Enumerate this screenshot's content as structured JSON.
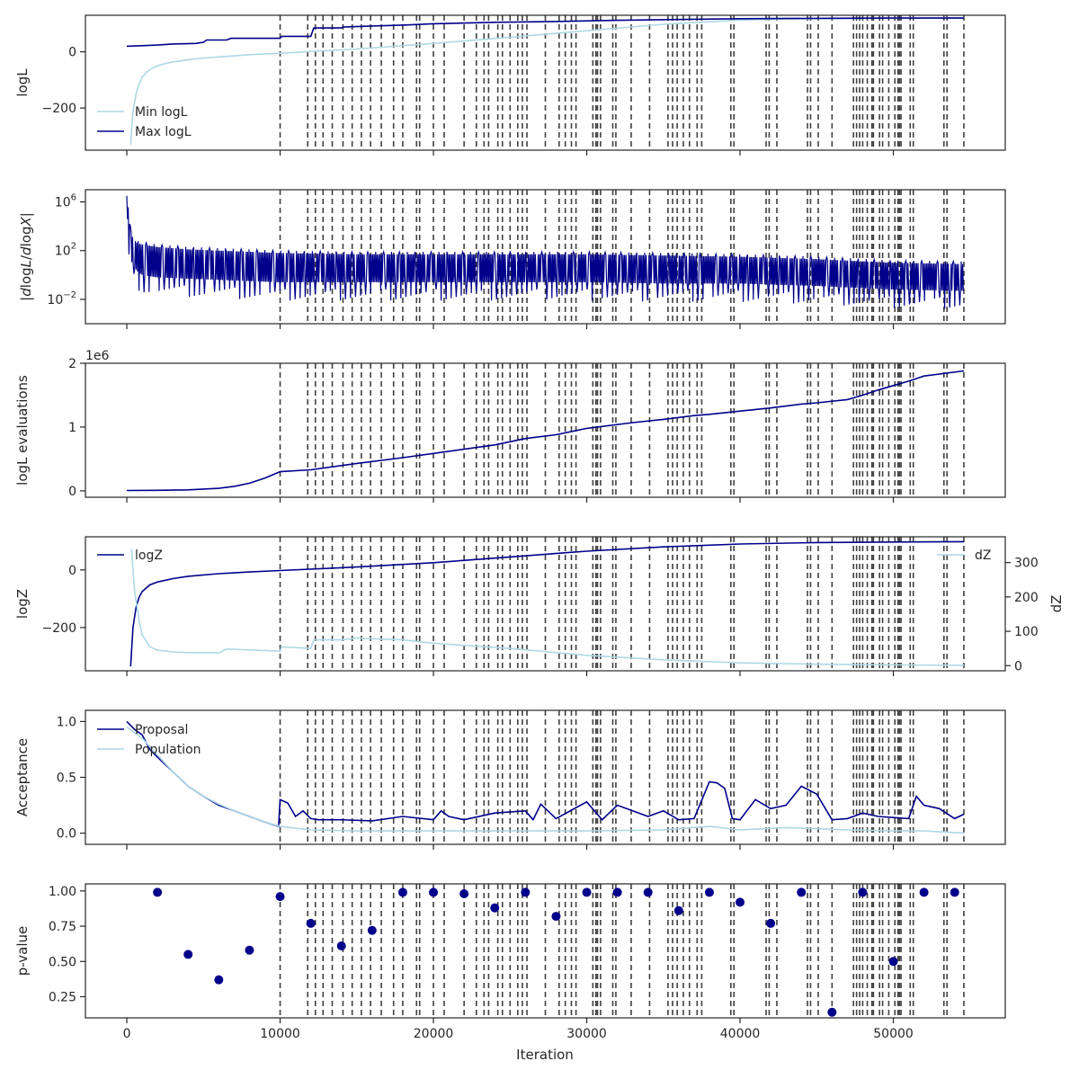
{
  "colors": {
    "dark": "#00008b",
    "light": "#add8e6",
    "vline": "#404040",
    "axis": "#262626"
  },
  "xlabel": "Iteration",
  "xticks": [
    0,
    10000,
    20000,
    30000,
    40000,
    50000
  ],
  "xlim": [
    -2700,
    57300
  ],
  "vlines": [
    10000,
    11800,
    12300,
    12800,
    13400,
    14100,
    14700,
    15300,
    15900,
    16600,
    17400,
    18000,
    18900,
    19100,
    20000,
    20700,
    22000,
    22800,
    23300,
    23600,
    24200,
    24500,
    25000,
    25500,
    25800,
    26100,
    27300,
    28200,
    28600,
    29000,
    29300,
    30400,
    30600,
    30700,
    30900,
    31700,
    31900,
    32900,
    34100,
    35300,
    35600,
    35900,
    36300,
    36700,
    37200,
    37500,
    39400,
    39600,
    41700,
    41900,
    42400,
    44400,
    44600,
    45100,
    46000,
    47400,
    47600,
    47800,
    48000,
    48300,
    48600,
    48700,
    49100,
    49300,
    49700,
    50100,
    50300,
    50400,
    50500,
    51100,
    51300,
    53300,
    53500,
    54600
  ],
  "chart_data": [
    {
      "type": "line",
      "ylabel": "logL",
      "ylim": [
        -350,
        130
      ],
      "yticks": [
        -200,
        0
      ],
      "ytick_labels": [
        "−200",
        "0"
      ],
      "legend": "lower-left",
      "series": [
        {
          "name": "Min logL",
          "x": [
            250,
            400,
            600,
            800,
            1000,
            1300,
            1600,
            2000,
            2500,
            3000,
            4000,
            5000,
            6000,
            8000,
            10000,
            15000,
            20000,
            25000,
            30000,
            35000,
            40000,
            45000,
            50000,
            54600
          ],
          "y": [
            -330,
            -210,
            -150,
            -115,
            -90,
            -72,
            -60,
            -50,
            -42,
            -36,
            -28,
            -22,
            -18,
            -10,
            -5,
            10,
            30,
            52,
            75,
            98,
            113,
            118,
            120,
            121
          ]
        },
        {
          "name": "Max logL",
          "x": [
            0,
            1000,
            2000,
            3000,
            4500,
            5000,
            5200,
            6500,
            6800,
            10000,
            10100,
            12000,
            12200,
            14000,
            14100,
            16000,
            18000,
            20000,
            24000,
            28000,
            32000,
            36000,
            40000,
            45000,
            50000,
            54600
          ],
          "y": [
            20,
            22,
            24,
            28,
            30,
            34,
            42,
            42,
            48,
            48,
            55,
            55,
            85,
            85,
            88,
            92,
            95,
            100,
            105,
            108,
            112,
            115,
            118,
            119,
            120,
            120
          ]
        }
      ]
    },
    {
      "type": "line",
      "ylabel": "|dlogL/dlogX|",
      "yscale": "log",
      "ylim_log10": [
        -4.0,
        7.0
      ],
      "yticks_log10": [
        -2,
        2,
        6
      ],
      "series": [
        {
          "name": "",
          "x": [
            0,
            100,
            200,
            400,
            700,
            1000,
            2000,
            4000,
            6000,
            8000,
            10000,
            15000,
            20000,
            25000,
            30000,
            35000,
            40000,
            45000,
            50000,
            54600
          ],
          "y_upper_log10": [
            6.5,
            5.5,
            4.0,
            3.0,
            2.6,
            2.5,
            2.3,
            2.1,
            2.0,
            1.9,
            1.8,
            1.7,
            1.7,
            1.7,
            1.7,
            1.6,
            1.5,
            1.3,
            1.0,
            0.9
          ],
          "y_lower_log10": [
            6.0,
            3.0,
            1.5,
            0.8,
            0.3,
            0.0,
            -0.2,
            -0.3,
            -0.4,
            -0.5,
            -0.6,
            -0.6,
            -0.6,
            -0.6,
            -0.6,
            -0.7,
            -0.7,
            -0.9,
            -1.2,
            -1.3
          ]
        }
      ]
    },
    {
      "type": "line",
      "ylabel": "logL evaluations",
      "offset_text": "1e6",
      "ylim": [
        -0.1,
        2.0
      ],
      "yticks": [
        0,
        1,
        2
      ],
      "ytick_labels": [
        "0",
        "1",
        "2"
      ],
      "series": [
        {
          "name": "",
          "x": [
            0,
            2000,
            4000,
            6000,
            7000,
            8000,
            9000,
            10000,
            12000,
            15000,
            18000,
            21000,
            24000,
            26000,
            28000,
            30000,
            33000,
            35000,
            37000,
            38000,
            40000,
            42000,
            44000,
            45000,
            47000,
            48000,
            49000,
            50000,
            51000,
            52000,
            54600
          ],
          "y": [
            0.005,
            0.008,
            0.015,
            0.04,
            0.07,
            0.12,
            0.2,
            0.3,
            0.33,
            0.43,
            0.52,
            0.62,
            0.72,
            0.82,
            0.88,
            0.98,
            1.07,
            1.12,
            1.18,
            1.2,
            1.25,
            1.3,
            1.36,
            1.38,
            1.43,
            1.5,
            1.58,
            1.65,
            1.72,
            1.8,
            1.88
          ]
        }
      ]
    },
    {
      "type": "line",
      "ylabel": "logZ",
      "ylim": [
        -350,
        115
      ],
      "yticks": [
        -200,
        0
      ],
      "ytick_labels": [
        "−200",
        "0"
      ],
      "y2label": "dZ",
      "y2lim": [
        -15,
        375
      ],
      "y2ticks": [
        0,
        100,
        200,
        300
      ],
      "y2tick_labels": [
        "0",
        "100",
        "200",
        "300"
      ],
      "legend": "upper-left",
      "legend2": "upper-right",
      "series": [
        {
          "name": "logZ",
          "axis": "left",
          "x": [
            250,
            400,
            600,
            800,
            1000,
            1500,
            2000,
            3000,
            4000,
            6000,
            8000,
            10000,
            15000,
            20000,
            25000,
            30000,
            35000,
            40000,
            45000,
            50000,
            54600
          ],
          "y": [
            -335,
            -200,
            -130,
            -95,
            -75,
            -52,
            -42,
            -30,
            -22,
            -13,
            -7,
            -2,
            10,
            25,
            45,
            65,
            80,
            90,
            95,
            97,
            98
          ]
        },
        {
          "name": "dZ",
          "axis": "right",
          "x": [
            300,
            500,
            800,
            1000,
            1500,
            2000,
            3000,
            4000,
            5000,
            6000,
            6500,
            10000,
            10100,
            12000,
            12200,
            14000,
            15000,
            18000,
            20000,
            25000,
            30000,
            35000,
            40000,
            45000,
            50000,
            54600
          ],
          "y": [
            340,
            220,
            130,
            90,
            55,
            45,
            40,
            38,
            38,
            37,
            48,
            42,
            55,
            50,
            75,
            75,
            80,
            75,
            65,
            50,
            30,
            17,
            8,
            4,
            2,
            1
          ]
        }
      ]
    },
    {
      "type": "line",
      "ylabel": "Acceptance",
      "ylim": [
        -0.1,
        1.1
      ],
      "yticks": [
        0.0,
        0.5,
        1.0
      ],
      "ytick_labels": [
        "0.0",
        "0.5",
        "1.0"
      ],
      "legend": "upper-left",
      "series": [
        {
          "name": "Proposal",
          "x": [
            0,
            500,
            1000,
            1500,
            2000,
            3000,
            4000,
            5000,
            6000,
            7000,
            8000,
            9000,
            9900,
            10000,
            10500,
            11000,
            11500,
            12000,
            12500,
            14000,
            16000,
            18000,
            20000,
            20500,
            21000,
            22000,
            24000,
            26000,
            26500,
            27000,
            28000,
            30000,
            31000,
            32000,
            34000,
            35000,
            36000,
            37000,
            38000,
            38500,
            39000,
            39500,
            40000,
            41000,
            42000,
            43000,
            44000,
            45000,
            46000,
            47000,
            47600,
            48000,
            49000,
            50000,
            51000,
            51500,
            52000,
            53000,
            54000,
            54600
          ],
          "y": [
            1.0,
            0.93,
            0.88,
            0.75,
            0.68,
            0.55,
            0.42,
            0.33,
            0.25,
            0.2,
            0.15,
            0.1,
            0.06,
            0.3,
            0.27,
            0.15,
            0.2,
            0.13,
            0.12,
            0.12,
            0.11,
            0.15,
            0.12,
            0.2,
            0.15,
            0.12,
            0.18,
            0.2,
            0.12,
            0.26,
            0.13,
            0.28,
            0.12,
            0.25,
            0.15,
            0.2,
            0.12,
            0.13,
            0.46,
            0.45,
            0.4,
            0.13,
            0.12,
            0.3,
            0.22,
            0.25,
            0.42,
            0.35,
            0.12,
            0.13,
            0.16,
            0.18,
            0.15,
            0.14,
            0.13,
            0.33,
            0.25,
            0.22,
            0.13,
            0.17
          ]
        },
        {
          "name": "Population",
          "x": [
            0,
            500,
            1000,
            2000,
            3000,
            4000,
            5000,
            6000,
            7000,
            8000,
            9000,
            10000,
            12000,
            15000,
            20000,
            25000,
            30000,
            35000,
            38000,
            40000,
            43000,
            45000,
            47000,
            50000,
            52000,
            54600
          ],
          "y": [
            0.95,
            0.9,
            0.85,
            0.7,
            0.55,
            0.42,
            0.33,
            0.26,
            0.2,
            0.15,
            0.1,
            0.06,
            0.03,
            0.02,
            0.02,
            0.02,
            0.02,
            0.03,
            0.06,
            0.03,
            0.05,
            0.04,
            0.03,
            0.02,
            0.02,
            0.0
          ]
        }
      ]
    },
    {
      "type": "scatter",
      "ylabel": "p-value",
      "ylim": [
        0.1,
        1.05
      ],
      "yticks": [
        0.25,
        0.5,
        0.75,
        1.0
      ],
      "ytick_labels": [
        "0.25",
        "0.50",
        "0.75",
        "1.00"
      ],
      "series": [
        {
          "name": "",
          "x": [
            2000,
            4000,
            6000,
            8000,
            10000,
            12000,
            14000,
            16000,
            18000,
            20000,
            22000,
            24000,
            26000,
            28000,
            30000,
            32000,
            34000,
            36000,
            38000,
            40000,
            42000,
            44000,
            46000,
            48000,
            50000,
            52000,
            54000
          ],
          "y": [
            0.99,
            0.55,
            0.37,
            0.58,
            0.96,
            0.77,
            0.61,
            0.72,
            0.99,
            0.99,
            0.98,
            0.88,
            0.99,
            0.82,
            0.99,
            0.99,
            0.99,
            0.86,
            0.99,
            0.92,
            0.77,
            0.99,
            0.14,
            0.99,
            0.5,
            0.99,
            0.99
          ]
        }
      ]
    }
  ]
}
